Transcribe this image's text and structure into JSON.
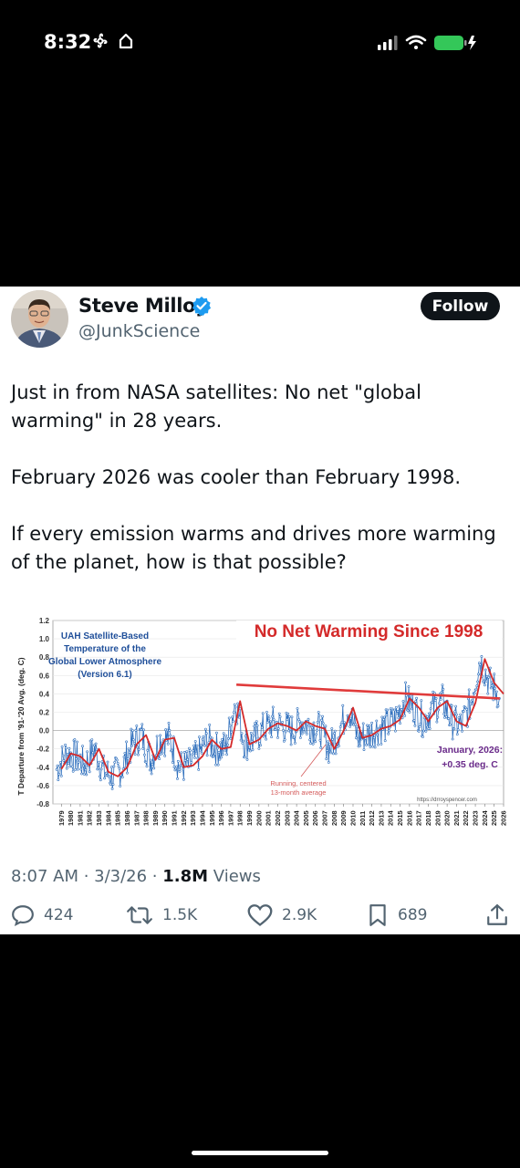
{
  "status_bar": {
    "time": "8:32",
    "battery_color": "#34c759"
  },
  "tweet": {
    "author": {
      "name": "Steve Milloy",
      "handle": "@JunkScience",
      "verified": true
    },
    "follow_label": "Follow",
    "paragraphs": [
      "Just in from NASA satellites: No net \"global\nwarming\" in 28 years.",
      "February 2026 was cooler than February 1998.",
      "If every emission warms and drives more warming\nof the planet, how is that possible?"
    ],
    "timestamp": "8:07 AM · 3/3/26 · ",
    "views_count": "1.8M",
    "views_label": " Views",
    "stats": {
      "replies": "424",
      "reposts": "1.5K",
      "likes": "2.9K",
      "bookmarks": "689"
    },
    "accent_color": "#1d9bf0"
  },
  "chart_data": {
    "type": "line",
    "title": "No Net Warming Since 1998",
    "inset_title": [
      "UAH Satellite-Based",
      "Temperature of the",
      "Global Lower Atmosphere",
      "(Version 6.1)"
    ],
    "ylabel": "T Departure from '91-'20 Avg. (deg. C)",
    "ylim": [
      -0.8,
      1.2
    ],
    "yticks": [
      "1.2",
      "1.0",
      "0.8",
      "0.6",
      "0.4",
      "0.2",
      "0.0",
      "-0.2",
      "-0.4",
      "-0.6",
      "-0.8"
    ],
    "x_years": [
      "1979",
      "1980",
      "1981",
      "1982",
      "1983",
      "1984",
      "1985",
      "1986",
      "1987",
      "1988",
      "1989",
      "1990",
      "1991",
      "1992",
      "1993",
      "1994",
      "1995",
      "1996",
      "1997",
      "1998",
      "1999",
      "2000",
      "2001",
      "2002",
      "2003",
      "2004",
      "2005",
      "2006",
      "2007",
      "2008",
      "2009",
      "2010",
      "2011",
      "2012",
      "2013",
      "2014",
      "2015",
      "2016",
      "2017",
      "2018",
      "2019",
      "2020",
      "2021",
      "2022",
      "2023",
      "2024",
      "2025",
      "2026"
    ],
    "latest_label": [
      "January, 2026:",
      "+0.35 deg. C"
    ],
    "running_label": [
      "Running, centered",
      "13-month average"
    ],
    "credit": "https://drroyspencer.com",
    "trend_line": {
      "start": [
        1998.1,
        0.5
      ],
      "end": [
        2026.1,
        0.35
      ]
    },
    "annual_avg": [
      [
        1979,
        -0.42
      ],
      [
        1980,
        -0.25
      ],
      [
        1981,
        -0.28
      ],
      [
        1982,
        -0.38
      ],
      [
        1983,
        -0.2
      ],
      [
        1984,
        -0.45
      ],
      [
        1985,
        -0.5
      ],
      [
        1986,
        -0.4
      ],
      [
        1987,
        -0.15
      ],
      [
        1988,
        -0.05
      ],
      [
        1989,
        -0.32
      ],
      [
        1990,
        -0.1
      ],
      [
        1991,
        -0.08
      ],
      [
        1992,
        -0.4
      ],
      [
        1993,
        -0.38
      ],
      [
        1994,
        -0.28
      ],
      [
        1995,
        -0.1
      ],
      [
        1996,
        -0.2
      ],
      [
        1997,
        -0.18
      ],
      [
        1998,
        0.32
      ],
      [
        1999,
        -0.15
      ],
      [
        2000,
        -0.1
      ],
      [
        2001,
        0.02
      ],
      [
        2002,
        0.08
      ],
      [
        2003,
        0.05
      ],
      [
        2004,
        0.0
      ],
      [
        2005,
        0.1
      ],
      [
        2006,
        0.05
      ],
      [
        2007,
        0.02
      ],
      [
        2008,
        -0.2
      ],
      [
        2009,
        0.0
      ],
      [
        2010,
        0.25
      ],
      [
        2011,
        -0.08
      ],
      [
        2012,
        -0.05
      ],
      [
        2013,
        0.02
      ],
      [
        2014,
        0.05
      ],
      [
        2015,
        0.12
      ],
      [
        2016,
        0.35
      ],
      [
        2017,
        0.25
      ],
      [
        2018,
        0.1
      ],
      [
        2019,
        0.25
      ],
      [
        2020,
        0.32
      ],
      [
        2021,
        0.1
      ],
      [
        2022,
        0.05
      ],
      [
        2023,
        0.3
      ],
      [
        2024,
        0.78
      ],
      [
        2025,
        0.52
      ],
      [
        2026,
        0.4
      ]
    ],
    "line_colors": {
      "monthly": "#2e6fbd",
      "average": "#d42a2a",
      "trend": "#e03b3b"
    }
  }
}
